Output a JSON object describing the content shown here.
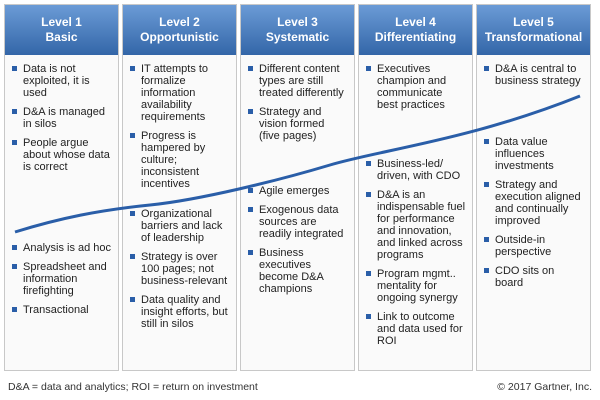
{
  "columns": [
    {
      "level": "Level 1",
      "name": "Basic",
      "above": [
        "Data is not exploited, it is used",
        "D&A is managed in silos",
        "People argue about whose data is correct"
      ],
      "below": [
        "Analysis is ad hoc",
        "Spreadsheet and information firefighting",
        "Transactional"
      ]
    },
    {
      "level": "Level 2",
      "name": "Opportunistic",
      "above": [
        "IT attempts to formalize information availability requirements",
        "Progress is hampered by culture; inconsistent incentives"
      ],
      "below": [
        "Organizational barriers and lack of leadership",
        "Strategy is over 100 pages; not business-relevant",
        "Data quality and insight efforts, but still in silos"
      ]
    },
    {
      "level": "Level 3",
      "name": "Systematic",
      "above": [
        "Different content types are still treated differently",
        "Strategy and vision formed (five pages)"
      ],
      "below": [
        "Agile emerges",
        "Exogenous data sources are readily integrated",
        "Business executives become D&A champions"
      ]
    },
    {
      "level": "Level 4",
      "name": "Differentiating",
      "above": [
        "Executives champion and communicate best practices"
      ],
      "below": [
        "Business-led/ driven, with CDO",
        "D&A is an indispensable fuel for performance and innovation, and linked across programs",
        "Program mgmt.. mentality for ongoing synergy",
        "Link to outcome and data used for ROI"
      ]
    },
    {
      "level": "Level 5",
      "name": "Transformational",
      "above": [
        "D&A is central to business strategy"
      ],
      "below": [
        "Data value influences investments",
        "Strategy and execution aligned and continually improved",
        "Outside-in perspective",
        "CDO sits on board"
      ]
    }
  ],
  "footer": {
    "note": "D&A = data and analytics; ROI = return on investment",
    "copyright": "© 2017 Gartner, Inc."
  }
}
